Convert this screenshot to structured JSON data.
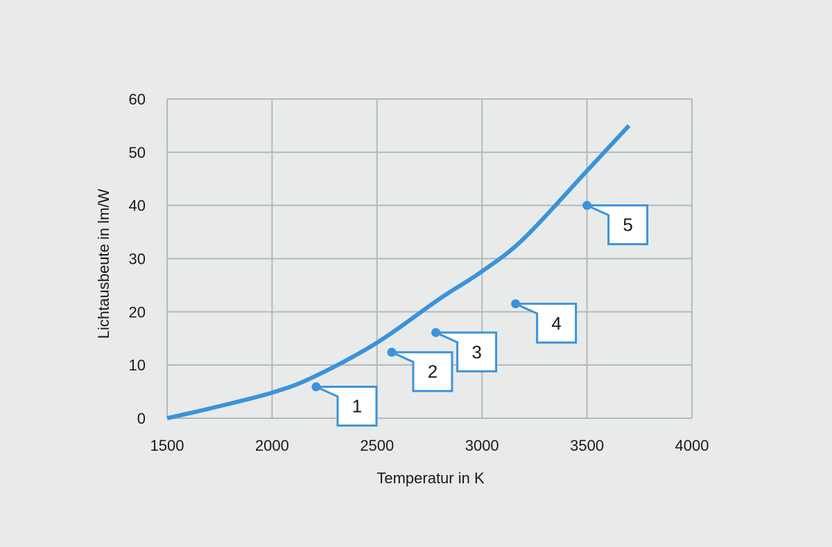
{
  "chart_data": {
    "type": "line",
    "xlabel": "Temperatur in K",
    "ylabel": "Lichtausbeute in lm/W",
    "xlim": [
      1500,
      4000
    ],
    "ylim": [
      0,
      60
    ],
    "x_ticks": [
      "1500",
      "2000",
      "2500",
      "3000",
      "3500",
      "4000"
    ],
    "y_ticks": [
      "0",
      "10",
      "20",
      "30",
      "40",
      "50",
      "60"
    ],
    "grid": true,
    "line_color": "#3b93d9",
    "background": "#e8ebea",
    "series": [
      {
        "x": [
          1500,
          1700,
          2000,
          2200,
          2500,
          2800,
          3000,
          3200,
          3500,
          3700
        ],
        "y": [
          0,
          1.8,
          4.8,
          7.8,
          14.2,
          22.5,
          27.6,
          33.8,
          46.5,
          55
        ]
      }
    ],
    "points": [
      {
        "label": "1",
        "x": 2210,
        "y": 5.9
      },
      {
        "label": "2",
        "x": 2570,
        "y": 12.4
      },
      {
        "label": "3",
        "x": 2780,
        "y": 16.1
      },
      {
        "label": "4",
        "x": 3160,
        "y": 21.5
      },
      {
        "label": "5",
        "x": 3500,
        "y": 40.0
      }
    ]
  }
}
